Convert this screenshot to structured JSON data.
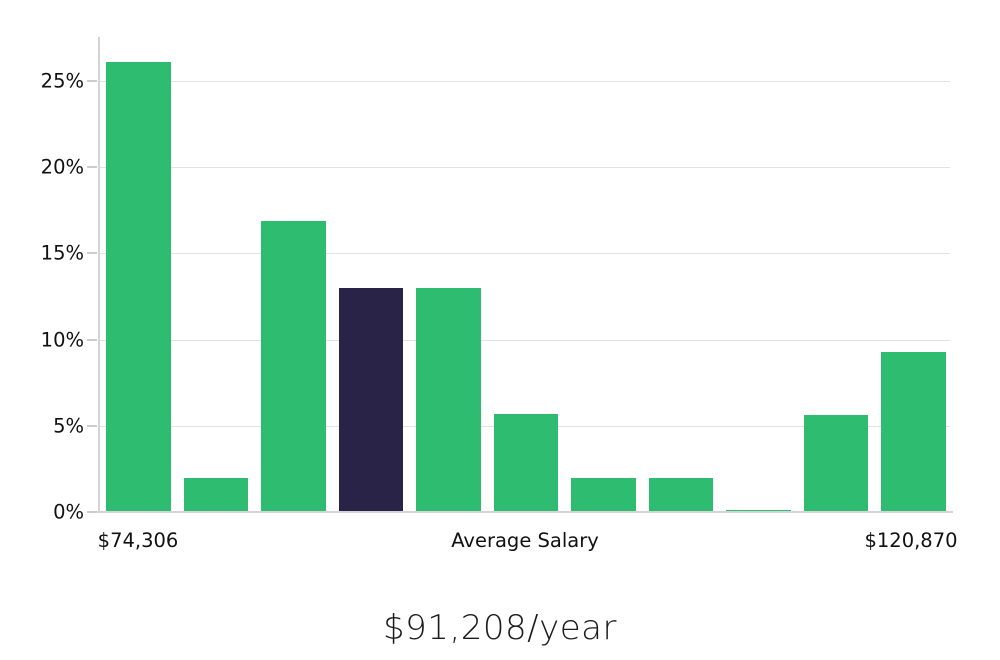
{
  "chart_data": {
    "type": "bar",
    "title": "$91,208/year",
    "values": [
      26.1,
      2.0,
      16.9,
      13.0,
      13.0,
      5.7,
      2.0,
      2.0,
      0.1,
      5.6,
      9.3
    ],
    "highlight_index": 3,
    "colors": {
      "bar": "#2ebd70",
      "highlight": "#282347",
      "gridline": "#e2e2e2",
      "spine": "#d4d4d4",
      "text": "#111111"
    },
    "y_axis": {
      "tick_labels": [
        "0%",
        "5%",
        "10%",
        "15%",
        "20%",
        "25%"
      ],
      "tick_values": [
        0,
        5,
        10,
        15,
        20,
        25
      ],
      "range": [
        0,
        27.5
      ],
      "grid": true
    },
    "x_axis": {
      "min_label": "$74,306",
      "center_label": "Average Salary",
      "max_label": "$120,870"
    },
    "legend": "none"
  }
}
